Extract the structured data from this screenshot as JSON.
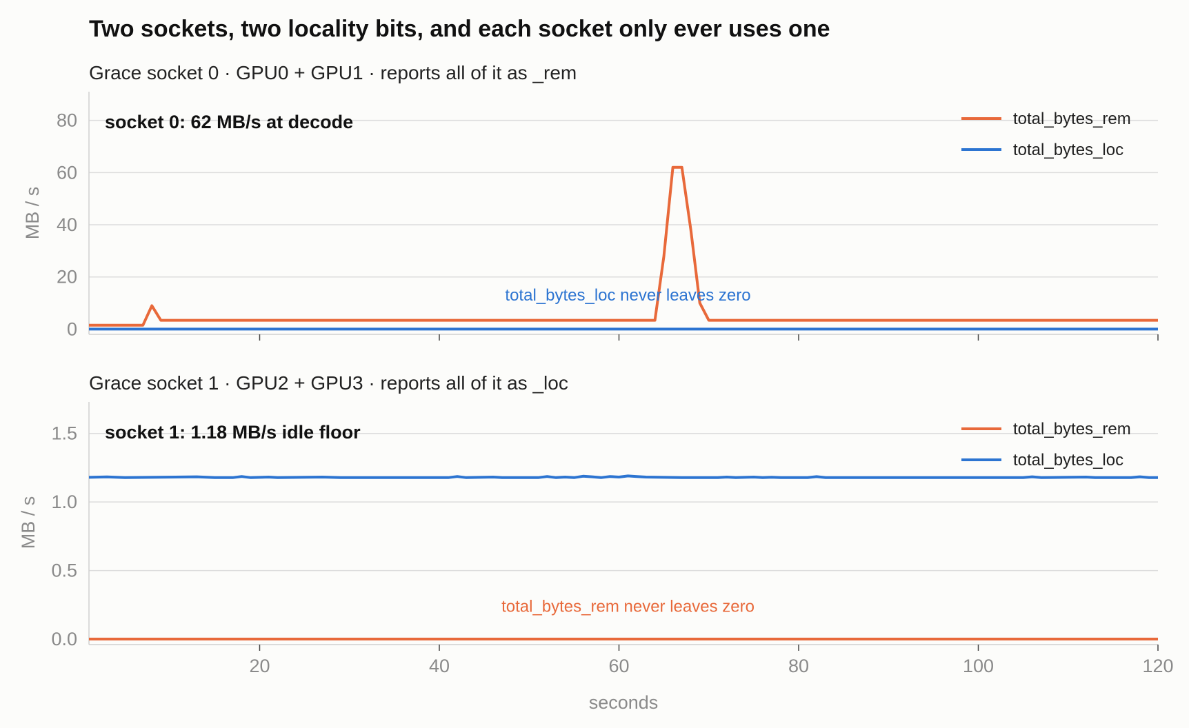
{
  "title": "Two sockets, two locality bits, and each socket only ever uses one",
  "colors": {
    "rem": "#e8693a",
    "loc": "#2c74d1"
  },
  "xlabel": "seconds",
  "chart_data": [
    {
      "type": "line",
      "subtitle": "Grace socket 0  ·  GPU0 + GPU1   ·   reports all of it as _rem",
      "ylabel": "MB / s",
      "xlim": [
        1,
        120
      ],
      "ylim": [
        -2,
        91
      ],
      "yticks": [
        0,
        20,
        40,
        60,
        80
      ],
      "xticks": [
        20,
        40,
        60,
        80,
        100,
        120
      ],
      "show_xtick_labels": false,
      "grid": true,
      "legend": "top-right",
      "callout": "socket 0: 62 MB/s at decode",
      "note": {
        "text": "total_bytes_loc never leaves zero",
        "x": 61,
        "y": 11,
        "color": "#2c74d1"
      },
      "series": [
        {
          "name": "total_bytes_rem",
          "color": "#e8693a",
          "points": [
            [
              1,
              1.5
            ],
            [
              7,
              1.5
            ],
            [
              8,
              9
            ],
            [
              9,
              3.4
            ],
            [
              15,
              3.4
            ],
            [
              30,
              3.4
            ],
            [
              45,
              3.4
            ],
            [
              60,
              3.4
            ],
            [
              64,
              3.4
            ],
            [
              65,
              28
            ],
            [
              66,
              62
            ],
            [
              67,
              62
            ],
            [
              68,
              38
            ],
            [
              69,
              10
            ],
            [
              70,
              3.4
            ],
            [
              85,
              3.4
            ],
            [
              100,
              3.4
            ],
            [
              120,
              3.4
            ]
          ]
        },
        {
          "name": "total_bytes_loc",
          "color": "#2c74d1",
          "points": [
            [
              1,
              0
            ],
            [
              120,
              0
            ]
          ]
        }
      ]
    },
    {
      "type": "line",
      "subtitle": "Grace socket 1  ·  GPU2 + GPU3   ·   reports all of it as _loc",
      "ylabel": "MB / s",
      "xlim": [
        1,
        120
      ],
      "ylim": [
        -0.04,
        1.73
      ],
      "yticks": [
        0.0,
        0.5,
        1.0,
        1.5
      ],
      "ytick_labels": [
        "0.0",
        "0.5",
        "1.0",
        "1.5"
      ],
      "xticks": [
        20,
        40,
        60,
        80,
        100,
        120
      ],
      "show_xtick_labels": true,
      "grid": true,
      "legend": "top-right",
      "callout": "socket 1: 1.18 MB/s idle floor",
      "note": {
        "text": "total_bytes_rem never leaves zero",
        "x": 61,
        "y": 0.2,
        "color": "#e8693a"
      },
      "series": [
        {
          "name": "total_bytes_rem",
          "color": "#e8693a",
          "points": [
            [
              1,
              0
            ],
            [
              120,
              0
            ]
          ]
        },
        {
          "name": "total_bytes_loc",
          "color": "#2c74d1",
          "points": [
            [
              1,
              1.18
            ],
            [
              3,
              1.183
            ],
            [
              5,
              1.178
            ],
            [
              13,
              1.184
            ],
            [
              15,
              1.178
            ],
            [
              17,
              1.178
            ],
            [
              18,
              1.186
            ],
            [
              19,
              1.178
            ],
            [
              21,
              1.182
            ],
            [
              22,
              1.178
            ],
            [
              27,
              1.182
            ],
            [
              29,
              1.178
            ],
            [
              41,
              1.178
            ],
            [
              42,
              1.186
            ],
            [
              43,
              1.178
            ],
            [
              46,
              1.182
            ],
            [
              47,
              1.178
            ],
            [
              51,
              1.178
            ],
            [
              52,
              1.186
            ],
            [
              53,
              1.178
            ],
            [
              54,
              1.182
            ],
            [
              55,
              1.178
            ],
            [
              56,
              1.188
            ],
            [
              57,
              1.184
            ],
            [
              58,
              1.178
            ],
            [
              59,
              1.186
            ],
            [
              60,
              1.182
            ],
            [
              61,
              1.19
            ],
            [
              62,
              1.186
            ],
            [
              63,
              1.182
            ],
            [
              65,
              1.18
            ],
            [
              67,
              1.178
            ],
            [
              71,
              1.178
            ],
            [
              72,
              1.182
            ],
            [
              73,
              1.178
            ],
            [
              75,
              1.182
            ],
            [
              76,
              1.178
            ],
            [
              77,
              1.181
            ],
            [
              78,
              1.178
            ],
            [
              81,
              1.178
            ],
            [
              82,
              1.185
            ],
            [
              83,
              1.178
            ],
            [
              105,
              1.178
            ],
            [
              106,
              1.184
            ],
            [
              107,
              1.178
            ],
            [
              112,
              1.182
            ],
            [
              113,
              1.178
            ],
            [
              117,
              1.178
            ],
            [
              118,
              1.184
            ],
            [
              119,
              1.178
            ],
            [
              120,
              1.178
            ]
          ]
        }
      ]
    }
  ]
}
